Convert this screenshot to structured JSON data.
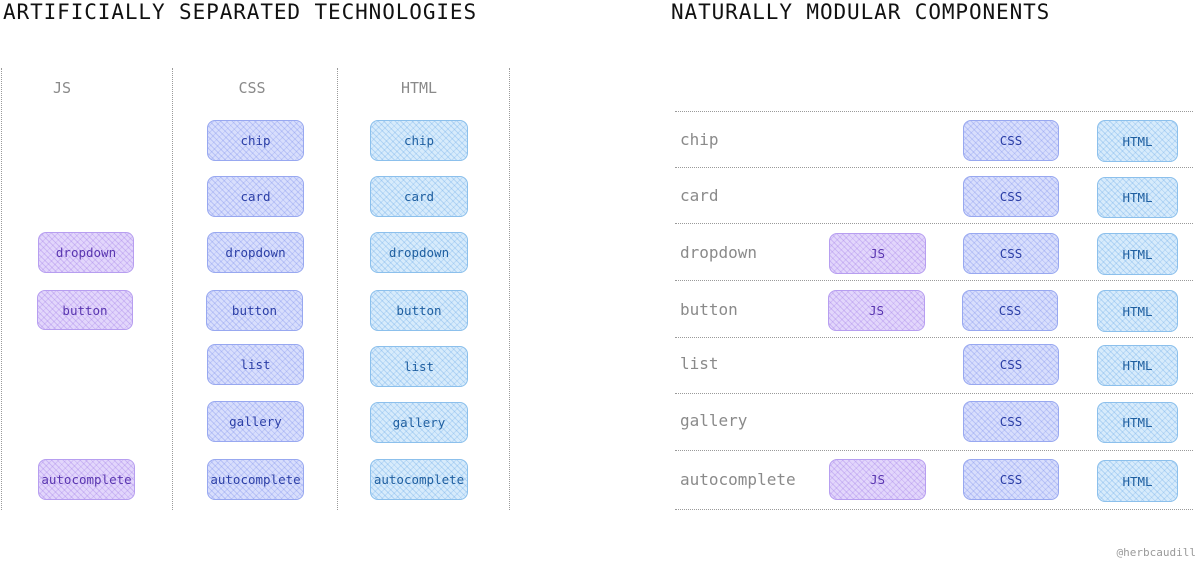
{
  "left_title": "ARTIFICIALLY SEPARATED TECHNOLOGIES",
  "right_title": "NATURALLY MODULAR COMPONENTS",
  "left_columns": [
    {
      "header": "JS",
      "type": "js",
      "items": [
        "dropdown",
        "button",
        "autocomplete"
      ]
    },
    {
      "header": "CSS",
      "type": "css",
      "items": [
        "chip",
        "card",
        "dropdown",
        "button",
        "list",
        "gallery",
        "autocomplete"
      ]
    },
    {
      "header": "HTML",
      "type": "html",
      "items": [
        "chip",
        "card",
        "dropdown",
        "button",
        "list",
        "gallery",
        "autocomplete"
      ]
    }
  ],
  "right_rows": [
    {
      "label": "chip",
      "chips": [
        "CSS",
        "HTML"
      ]
    },
    {
      "label": "card",
      "chips": [
        "CSS",
        "HTML"
      ]
    },
    {
      "label": "dropdown",
      "chips": [
        "JS",
        "CSS",
        "HTML"
      ]
    },
    {
      "label": "button",
      "chips": [
        "JS",
        "CSS",
        "HTML"
      ]
    },
    {
      "label": "list",
      "chips": [
        "CSS",
        "HTML"
      ]
    },
    {
      "label": "gallery",
      "chips": [
        "CSS",
        "HTML"
      ]
    },
    {
      "label": "autocomplete",
      "chips": [
        "JS",
        "CSS",
        "HTML"
      ]
    }
  ],
  "credit": "@herbcaudill",
  "colors": {
    "js": "#e2d6fb",
    "css": "#d8defc",
    "html": "#d7ebfb",
    "header_text": "#8a8a8a",
    "divider": "#9a9a9a"
  }
}
